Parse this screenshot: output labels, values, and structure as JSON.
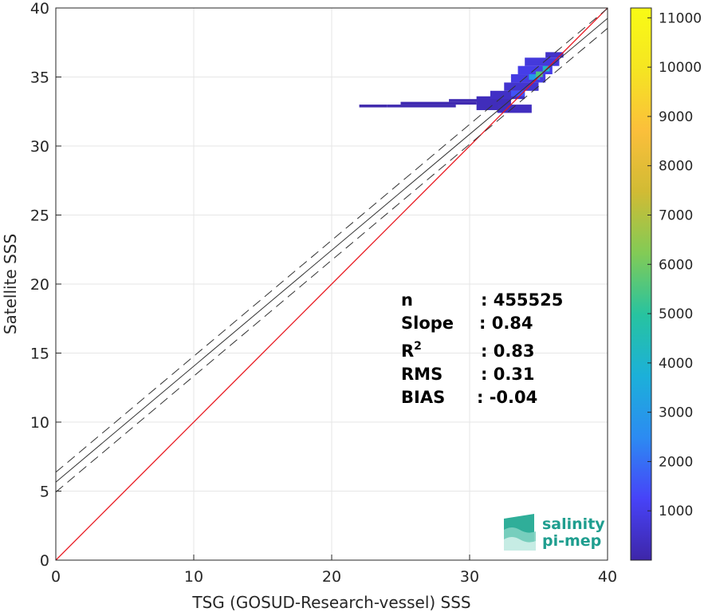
{
  "chart_data": {
    "type": "heatmap",
    "xlabel": "TSG (GOSUD-Research-vessel) SSS",
    "ylabel": "Satellite SSS",
    "xlim": [
      0,
      40
    ],
    "ylim": [
      0,
      40
    ],
    "x_ticks": [
      "0",
      "10",
      "20",
      "30",
      "40"
    ],
    "y_ticks": [
      "0",
      "5",
      "10",
      "15",
      "20",
      "25",
      "30",
      "35",
      "40"
    ],
    "grid": true,
    "identity_line": {
      "color": "#e8141c",
      "from": [
        0,
        0
      ],
      "to": [
        40,
        40
      ]
    },
    "regression": {
      "slope": 0.84,
      "intercept": 5.65,
      "band": 0.72
    },
    "colorbar": {
      "min": 0,
      "max": 11200,
      "ticks": [
        "1000",
        "2000",
        "3000",
        "4000",
        "5000",
        "6000",
        "7000",
        "8000",
        "9000",
        "10000",
        "11000"
      ],
      "colormap": [
        "#3e26a8",
        "#4743f8",
        "#2c8bf2",
        "#1cb0d9",
        "#27c3a0",
        "#82cb56",
        "#d1bb34",
        "#fbbf3b",
        "#f5e522",
        "#f9fb15"
      ]
    },
    "density_cells": [
      {
        "x": [
          22.0,
          24.0
        ],
        "y": [
          32.8,
          33.0
        ],
        "v": 60
      },
      {
        "x": [
          24.0,
          29.0
        ],
        "y": [
          32.8,
          33.0
        ],
        "v": 120
      },
      {
        "x": [
          25.0,
          30.5
        ],
        "y": [
          33.0,
          33.2
        ],
        "v": 140
      },
      {
        "x": [
          28.5,
          31.5
        ],
        "y": [
          33.2,
          33.4
        ],
        "v": 160
      },
      {
        "x": [
          30.5,
          33.0
        ],
        "y": [
          32.6,
          33.6
        ],
        "v": 300
      },
      {
        "x": [
          31.5,
          34.0
        ],
        "y": [
          33.4,
          34.0
        ],
        "v": 450
      },
      {
        "x": [
          32.0,
          34.5
        ],
        "y": [
          32.4,
          33.0
        ],
        "v": 350
      },
      {
        "x": [
          32.5,
          35.0
        ],
        "y": [
          34.0,
          34.6
        ],
        "v": 600
      },
      {
        "x": [
          33.0,
          35.5
        ],
        "y": [
          34.6,
          35.2
        ],
        "v": 900
      },
      {
        "x": [
          33.5,
          36.0
        ],
        "y": [
          35.2,
          35.8
        ],
        "v": 1000
      },
      {
        "x": [
          34.0,
          36.5
        ],
        "y": [
          35.8,
          36.4
        ],
        "v": 800
      },
      {
        "x": [
          35.5,
          36.8
        ],
        "y": [
          36.4,
          36.8
        ],
        "v": 500
      },
      {
        "x": [
          34.3,
          35.1
        ],
        "y": [
          34.8,
          35.2
        ],
        "v": 3000
      },
      {
        "x": [
          34.8,
          35.3
        ],
        "y": [
          35.0,
          35.4
        ],
        "v": 5500
      },
      {
        "x": [
          35.3,
          35.8
        ],
        "y": [
          35.4,
          35.8
        ],
        "v": 4200
      },
      {
        "x": [
          33.0,
          34.0
        ],
        "y": [
          33.6,
          34.0
        ],
        "v": 1500
      }
    ],
    "stats": [
      {
        "label": "n",
        "value": ": 455525"
      },
      {
        "label": "Slope",
        "value": ": 0.84"
      },
      {
        "label": "R",
        "sup": "2",
        "value": ": 0.83"
      },
      {
        "label": "RMS",
        "value": ": 0.31"
      },
      {
        "label": "BIAS",
        "value": ": -0.04"
      }
    ]
  },
  "logo": {
    "line1": "salinity",
    "line2": "pi-mep"
  }
}
